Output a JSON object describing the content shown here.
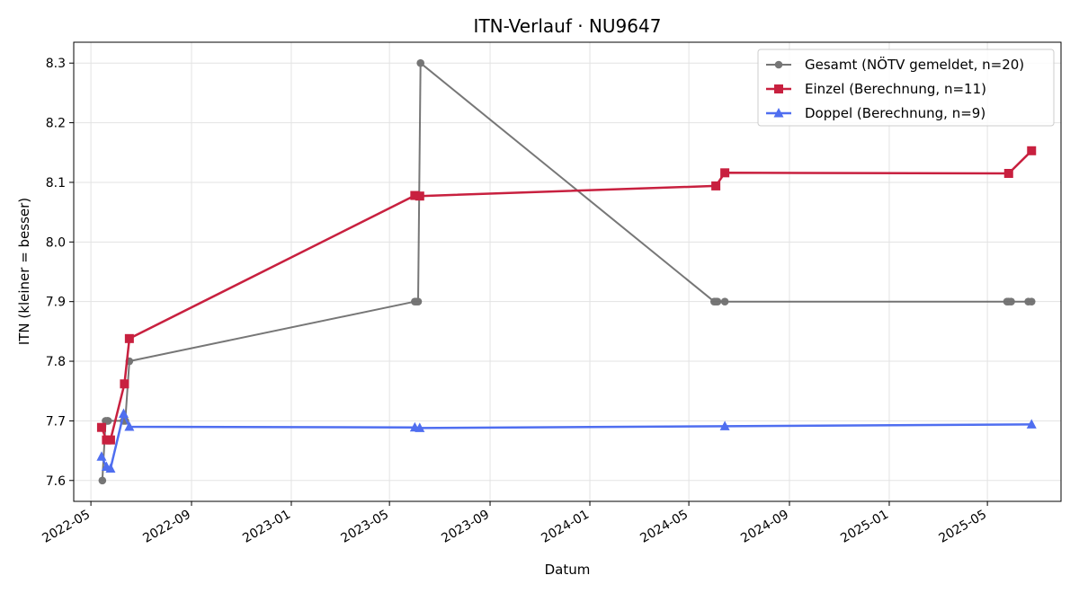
{
  "chart_data": {
    "type": "line",
    "title": "ITN-Verlauf · NU9647",
    "xlabel": "Datum",
    "ylabel": "ITN  (kleiner = besser)",
    "x_type": "date",
    "xlim": [
      "2022-04-10",
      "2025-07-30"
    ],
    "ylim": [
      7.565,
      8.335
    ],
    "x_ticks": [
      "2022-05",
      "2022-09",
      "2023-01",
      "2023-05",
      "2023-09",
      "2024-01",
      "2024-05",
      "2024-09",
      "2025-01",
      "2025-05"
    ],
    "y_ticks": [
      "7.6",
      "7.7",
      "7.8",
      "7.9",
      "8.0",
      "8.1",
      "8.2",
      "8.3"
    ],
    "grid": true,
    "legend_position": "top-right",
    "series": [
      {
        "name": "Gesamt (NÖTV gemeldet, n=20)",
        "color": "#555555",
        "marker": "circle",
        "points": [
          {
            "x": "2022-05-15",
            "y": 7.6
          },
          {
            "x": "2022-05-19",
            "y": 7.7
          },
          {
            "x": "2022-05-21",
            "y": 7.7
          },
          {
            "x": "2022-05-22",
            "y": 7.7
          },
          {
            "x": "2022-06-10",
            "y": 7.7
          },
          {
            "x": "2022-06-12",
            "y": 7.7
          },
          {
            "x": "2022-06-17",
            "y": 7.8
          },
          {
            "x": "2023-06-01",
            "y": 7.9
          },
          {
            "x": "2023-06-03",
            "y": 7.9
          },
          {
            "x": "2023-06-05",
            "y": 7.9
          },
          {
            "x": "2023-06-08",
            "y": 8.3
          },
          {
            "x": "2024-06-01",
            "y": 7.9
          },
          {
            "x": "2024-06-03",
            "y": 7.9
          },
          {
            "x": "2024-06-05",
            "y": 7.9
          },
          {
            "x": "2024-06-14",
            "y": 7.9
          },
          {
            "x": "2025-05-25",
            "y": 7.9
          },
          {
            "x": "2025-05-27",
            "y": 7.9
          },
          {
            "x": "2025-05-30",
            "y": 7.9
          },
          {
            "x": "2025-06-20",
            "y": 7.9
          },
          {
            "x": "2025-06-24",
            "y": 7.9
          }
        ]
      },
      {
        "name": "Einzel (Berechnung, n=11)",
        "color": "#c8203f",
        "marker": "square",
        "points": [
          {
            "x": "2022-05-14",
            "y": 7.689
          },
          {
            "x": "2022-05-20",
            "y": 7.668
          },
          {
            "x": "2022-05-25",
            "y": 7.668
          },
          {
            "x": "2022-06-11",
            "y": 7.762
          },
          {
            "x": "2022-06-17",
            "y": 7.838
          },
          {
            "x": "2023-06-01",
            "y": 8.078
          },
          {
            "x": "2023-06-07",
            "y": 8.077
          },
          {
            "x": "2024-06-03",
            "y": 8.094
          },
          {
            "x": "2024-06-14",
            "y": 8.116
          },
          {
            "x": "2025-05-27",
            "y": 8.115
          },
          {
            "x": "2025-06-24",
            "y": 8.153
          }
        ]
      },
      {
        "name": "Doppel (Berechnung, n=9)",
        "color": "#4f6ef0",
        "marker": "triangle",
        "points": [
          {
            "x": "2022-05-14",
            "y": 7.64
          },
          {
            "x": "2022-05-20",
            "y": 7.623
          },
          {
            "x": "2022-05-25",
            "y": 7.62
          },
          {
            "x": "2022-06-10",
            "y": 7.712
          },
          {
            "x": "2022-06-17",
            "y": 7.69
          },
          {
            "x": "2023-06-01",
            "y": 7.689
          },
          {
            "x": "2023-06-07",
            "y": 7.688
          },
          {
            "x": "2024-06-14",
            "y": 7.691
          },
          {
            "x": "2025-06-24",
            "y": 7.694
          }
        ]
      }
    ]
  }
}
